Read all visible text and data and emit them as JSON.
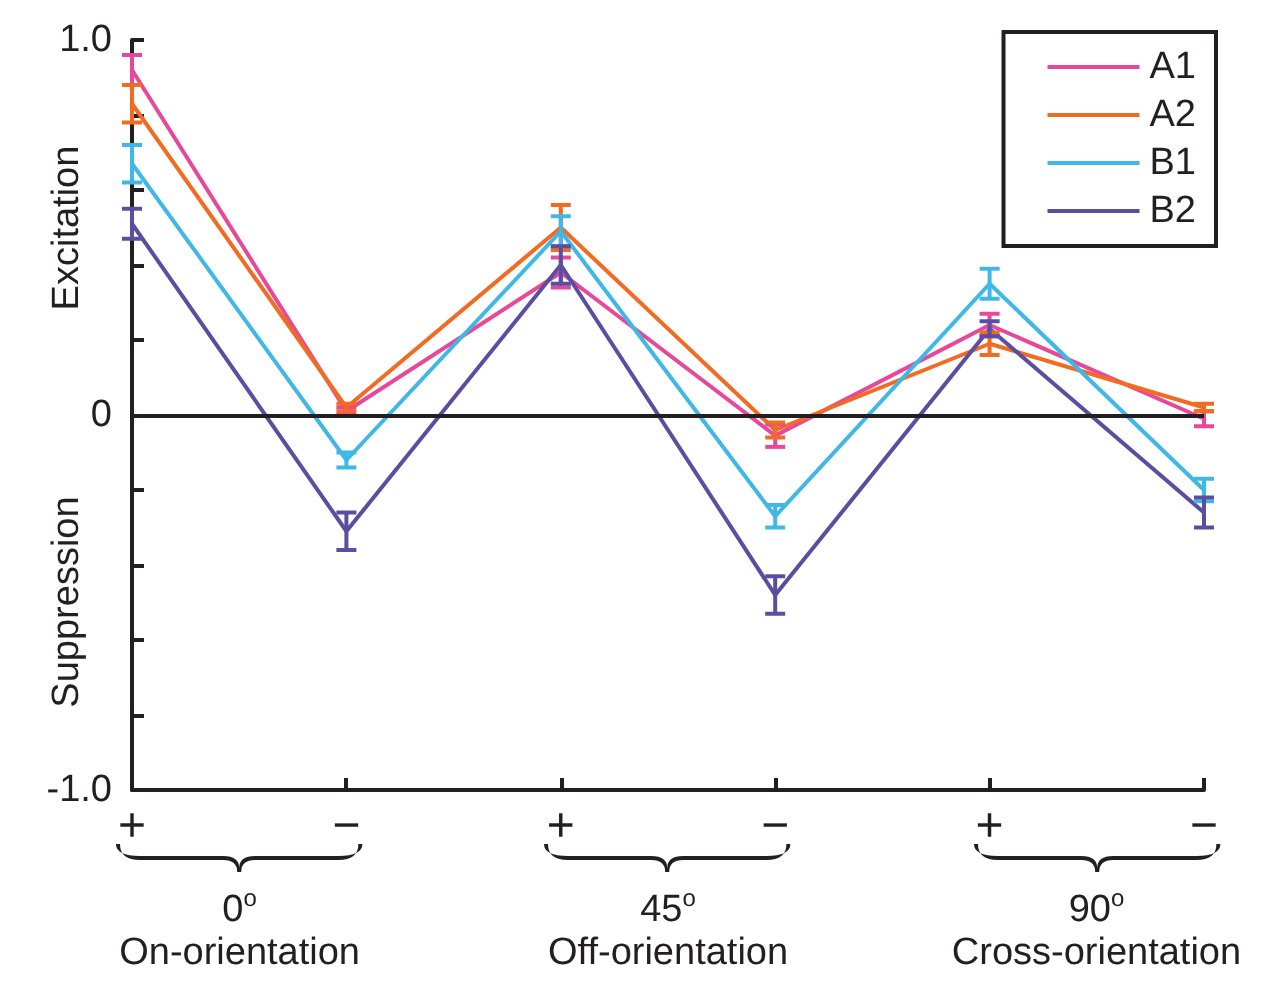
{
  "chart_data": {
    "type": "line",
    "categories": [
      "+",
      "−",
      "+",
      "−",
      "+",
      "−"
    ],
    "ylabel": "Excitation",
    "annotations": [
      "Suppression",
      "0$^{o}$\nOn-orientation",
      "45$^{o}$\nOff-orientation",
      "90$^{o}$\nCross-orientation"
    ],
    "series": [
      {
        "name": "A1",
        "color": "#e8489a",
        "values": [
          0.92,
          0.01,
          0.38,
          -0.055,
          0.24,
          -0.01
        ],
        "errors": [
          0.04,
          0.01,
          0.04,
          0.03,
          0.03,
          0.02
        ]
      },
      {
        "name": "A2",
        "color": "#f26b21",
        "values": [
          0.83,
          0.02,
          0.5,
          -0.04,
          0.19,
          0.02
        ],
        "errors": [
          0.05,
          0.01,
          0.06,
          0.02,
          0.03,
          0.01
        ]
      },
      {
        "name": "B1",
        "color": "#3fb8e8",
        "values": [
          0.67,
          -0.12,
          0.49,
          -0.27,
          0.35,
          -0.2
        ],
        "errors": [
          0.05,
          0.02,
          0.04,
          0.03,
          0.04,
          0.03
        ]
      },
      {
        "name": "B2",
        "color": "#5a4ea0",
        "values": [
          0.51,
          -0.31,
          0.4,
          -0.48,
          0.23,
          -0.26
        ],
        "errors": [
          0.04,
          0.05,
          0.05,
          0.05,
          0.02,
          0.04
        ]
      }
    ],
    "ylim": [
      -1.0,
      1.0
    ],
    "yticks": [
      {
        "value": -1.0,
        "label": "-1.0"
      },
      {
        "value": -0.8,
        "label": null
      },
      {
        "value": -0.6,
        "label": null
      },
      {
        "value": -0.4,
        "label": null
      },
      {
        "value": -0.2,
        "label": null
      },
      0,
      {
        "value": 0.2,
        "label": null
      },
      {
        "value": 0.4,
        "label": null
      },
      {
        "value": 0.6,
        "label": null
      },
      {
        "value": 0.8,
        "label": null
      },
      {
        "value": 1.0,
        "label": "1.0"
      }
    ],
    "ref_lines": [
      {
        "axis": "y",
        "value": 0,
        "color": "#231f20"
      }
    ],
    "legend": "top right",
    "grid": false,
    "marker": "none",
    "line_style": "solid"
  }
}
